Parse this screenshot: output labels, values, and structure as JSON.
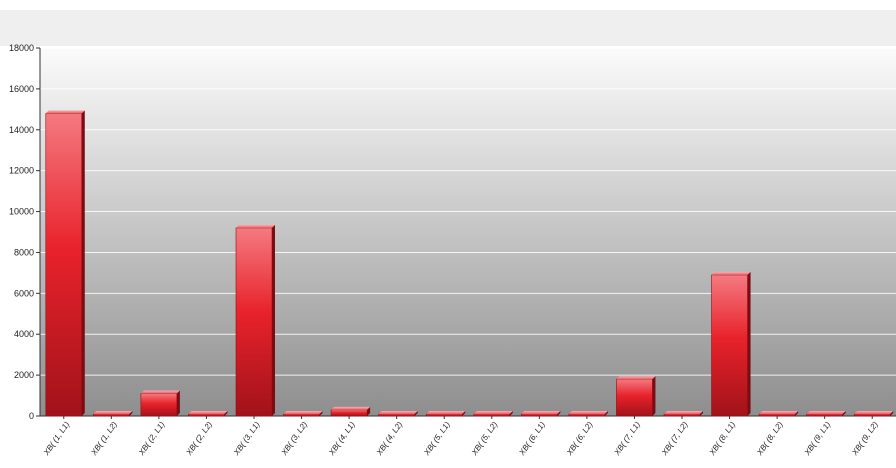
{
  "chart_data": {
    "type": "bar",
    "title": "",
    "xlabel": "",
    "ylabel": "",
    "ylim": [
      0,
      18000
    ],
    "yticks": [
      0,
      2000,
      4000,
      6000,
      8000,
      10000,
      12000,
      14000,
      16000,
      18000
    ],
    "grid": true,
    "legend_position": "top-left",
    "categories": [
      "XB( (1, L1)",
      "XB( (1, L2)",
      "XB( (2, L1)",
      "XB( (2, L2)",
      "XB( (3, L1)",
      "XB( (3, L2)",
      "XB( (4, L1)",
      "XB( (4, L2)",
      "XB( (5, L1)",
      "XB( (5, L2)",
      "XB( (6, L1)",
      "XB( (6, L2)",
      "XB( (7, L1)",
      "XB( (7, L2)",
      "XB( (8, L1)",
      "XB( (8, L2)",
      "XB( (9, L1)",
      "XB( (9, L2)"
    ],
    "series": [
      {
        "name": "XB",
        "color": "#e41b23",
        "values": [
          14800,
          0,
          1100,
          0,
          9200,
          0,
          300,
          0,
          0,
          0,
          0,
          0,
          1800,
          0,
          6900,
          0,
          0,
          0
        ]
      }
    ]
  }
}
